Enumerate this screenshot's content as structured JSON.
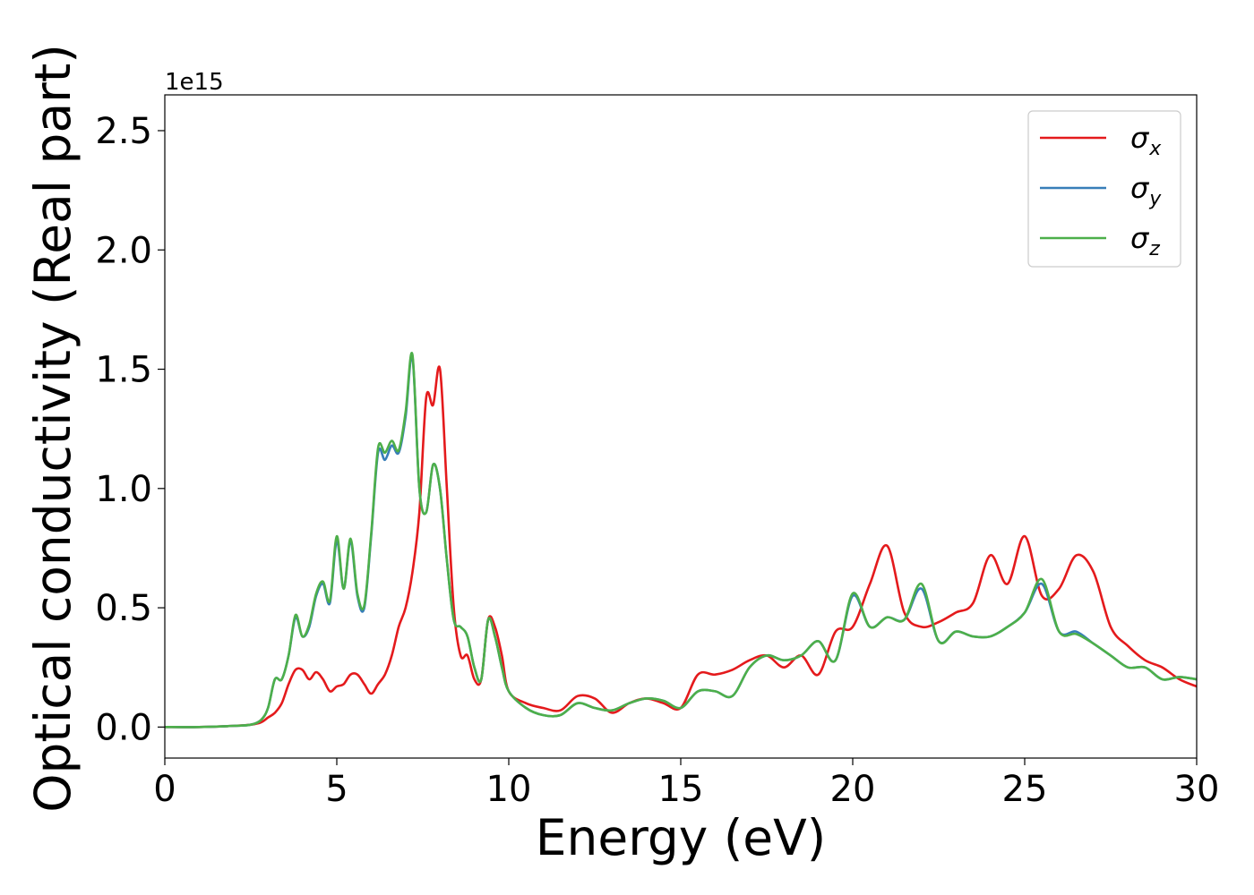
{
  "chart_data": {
    "type": "line",
    "title": "",
    "xlabel": "Energy (eV)",
    "ylabel": "Optical conductivity (Real part)",
    "y_offset_label": "1e15",
    "xlim": [
      0,
      30
    ],
    "ylim": [
      -0.13,
      2.65
    ],
    "xticks": [
      0,
      5,
      10,
      15,
      20,
      25,
      30
    ],
    "xtick_labels": [
      "0",
      "5",
      "10",
      "15",
      "20",
      "25",
      "30"
    ],
    "yticks": [
      0.0,
      0.5,
      1.0,
      1.5,
      2.0,
      2.5
    ],
    "ytick_labels": [
      "0.0",
      "0.5",
      "1.0",
      "1.5",
      "2.0",
      "2.5"
    ],
    "grid": false,
    "legend_position": "top-right",
    "series": [
      {
        "name": "σx",
        "legend_symbol": "σ",
        "legend_subscript": "x",
        "color": "#e41a1c",
        "x": [
          0,
          1,
          2,
          2.5,
          2.8,
          3.0,
          3.2,
          3.4,
          3.6,
          3.8,
          4.0,
          4.2,
          4.4,
          4.6,
          4.8,
          5.0,
          5.2,
          5.4,
          5.6,
          5.8,
          6.0,
          6.2,
          6.4,
          6.6,
          6.8,
          7.0,
          7.2,
          7.4,
          7.6,
          7.8,
          8.0,
          8.2,
          8.4,
          8.6,
          8.8,
          9.0,
          9.2,
          9.4,
          9.6,
          9.8,
          10.0,
          10.5,
          11.0,
          11.5,
          12.0,
          12.5,
          13.0,
          13.5,
          14.0,
          14.5,
          15.0,
          15.5,
          16.0,
          16.5,
          17.0,
          17.5,
          18.0,
          18.5,
          19.0,
          19.5,
          20.0,
          20.5,
          21.0,
          21.5,
          22.0,
          22.5,
          23.0,
          23.5,
          24.0,
          24.5,
          25.0,
          25.5,
          26.0,
          26.5,
          27.0,
          27.5,
          28.0,
          28.5,
          29.0,
          29.5,
          30.0
        ],
        "y": [
          0,
          0,
          0.005,
          0.01,
          0.02,
          0.04,
          0.06,
          0.1,
          0.18,
          0.24,
          0.24,
          0.2,
          0.23,
          0.2,
          0.15,
          0.17,
          0.18,
          0.22,
          0.22,
          0.18,
          0.14,
          0.18,
          0.22,
          0.3,
          0.42,
          0.5,
          0.65,
          0.9,
          1.38,
          1.35,
          1.5,
          1.0,
          0.5,
          0.3,
          0.3,
          0.2,
          0.2,
          0.45,
          0.42,
          0.3,
          0.15,
          0.1,
          0.08,
          0.07,
          0.13,
          0.12,
          0.06,
          0.1,
          0.12,
          0.1,
          0.08,
          0.22,
          0.22,
          0.24,
          0.28,
          0.3,
          0.25,
          0.3,
          0.22,
          0.4,
          0.42,
          0.6,
          0.76,
          0.48,
          0.42,
          0.44,
          0.48,
          0.52,
          0.72,
          0.6,
          0.8,
          0.55,
          0.58,
          0.72,
          0.65,
          0.42,
          0.34,
          0.28,
          0.25,
          0.2,
          0.17
        ]
      },
      {
        "name": "σy",
        "legend_symbol": "σ",
        "legend_subscript": "y",
        "color": "#377eb8",
        "x": [
          0,
          1,
          2,
          2.5,
          2.8,
          3.0,
          3.2,
          3.4,
          3.6,
          3.8,
          4.0,
          4.2,
          4.4,
          4.6,
          4.8,
          5.0,
          5.2,
          5.4,
          5.6,
          5.8,
          6.0,
          6.2,
          6.4,
          6.6,
          6.8,
          7.0,
          7.2,
          7.4,
          7.6,
          7.8,
          8.0,
          8.2,
          8.4,
          8.6,
          8.8,
          9.0,
          9.2,
          9.4,
          9.6,
          9.8,
          10.0,
          10.5,
          11.0,
          11.5,
          12.0,
          12.5,
          13.0,
          13.5,
          14.0,
          14.5,
          15.0,
          15.5,
          16.0,
          16.5,
          17.0,
          17.5,
          18.0,
          18.5,
          19.0,
          19.5,
          20.0,
          20.5,
          21.0,
          21.5,
          22.0,
          22.5,
          23.0,
          23.5,
          24.0,
          24.5,
          25.0,
          25.5,
          26.0,
          26.5,
          27.0,
          27.5,
          28.0,
          28.5,
          29.0,
          29.5,
          30.0
        ],
        "y": [
          0,
          0,
          0.005,
          0.01,
          0.03,
          0.08,
          0.2,
          0.2,
          0.3,
          0.46,
          0.38,
          0.42,
          0.55,
          0.6,
          0.52,
          0.78,
          0.58,
          0.78,
          0.55,
          0.5,
          0.8,
          1.15,
          1.12,
          1.18,
          1.15,
          1.3,
          1.55,
          1.0,
          0.9,
          1.1,
          1.0,
          0.7,
          0.45,
          0.42,
          0.38,
          0.25,
          0.2,
          0.45,
          0.38,
          0.25,
          0.15,
          0.08,
          0.05,
          0.05,
          0.1,
          0.08,
          0.07,
          0.1,
          0.12,
          0.11,
          0.08,
          0.15,
          0.15,
          0.13,
          0.25,
          0.3,
          0.28,
          0.3,
          0.36,
          0.28,
          0.55,
          0.42,
          0.46,
          0.45,
          0.58,
          0.36,
          0.4,
          0.38,
          0.38,
          0.42,
          0.48,
          0.6,
          0.4,
          0.4,
          0.35,
          0.3,
          0.25,
          0.25,
          0.2,
          0.21,
          0.2
        ]
      },
      {
        "name": "σz",
        "legend_symbol": "σ",
        "legend_subscript": "z",
        "color": "#4daf4a",
        "x": [
          0,
          1,
          2,
          2.5,
          2.8,
          3.0,
          3.2,
          3.4,
          3.6,
          3.8,
          4.0,
          4.2,
          4.4,
          4.6,
          4.8,
          5.0,
          5.2,
          5.4,
          5.6,
          5.8,
          6.0,
          6.2,
          6.4,
          6.6,
          6.8,
          7.0,
          7.2,
          7.4,
          7.6,
          7.8,
          8.0,
          8.2,
          8.4,
          8.6,
          8.8,
          9.0,
          9.2,
          9.4,
          9.6,
          9.8,
          10.0,
          10.5,
          11.0,
          11.5,
          12.0,
          12.5,
          13.0,
          13.5,
          14.0,
          14.5,
          15.0,
          15.5,
          16.0,
          16.5,
          17.0,
          17.5,
          18.0,
          18.5,
          19.0,
          19.5,
          20.0,
          20.5,
          21.0,
          21.5,
          22.0,
          22.5,
          23.0,
          23.5,
          24.0,
          24.5,
          25.0,
          25.5,
          26.0,
          26.5,
          27.0,
          27.5,
          28.0,
          28.5,
          29.0,
          29.5,
          30.0
        ],
        "y": [
          0,
          0,
          0.005,
          0.01,
          0.03,
          0.08,
          0.2,
          0.2,
          0.3,
          0.47,
          0.38,
          0.43,
          0.56,
          0.61,
          0.53,
          0.8,
          0.58,
          0.79,
          0.56,
          0.51,
          0.81,
          1.17,
          1.15,
          1.2,
          1.16,
          1.32,
          1.56,
          1.0,
          0.9,
          1.1,
          1.0,
          0.7,
          0.45,
          0.42,
          0.38,
          0.25,
          0.2,
          0.45,
          0.38,
          0.25,
          0.15,
          0.08,
          0.05,
          0.05,
          0.1,
          0.08,
          0.07,
          0.1,
          0.12,
          0.11,
          0.08,
          0.15,
          0.15,
          0.13,
          0.25,
          0.3,
          0.28,
          0.3,
          0.36,
          0.28,
          0.56,
          0.42,
          0.46,
          0.45,
          0.6,
          0.36,
          0.4,
          0.38,
          0.38,
          0.42,
          0.48,
          0.62,
          0.4,
          0.39,
          0.35,
          0.3,
          0.25,
          0.25,
          0.2,
          0.21,
          0.2
        ]
      }
    ]
  }
}
